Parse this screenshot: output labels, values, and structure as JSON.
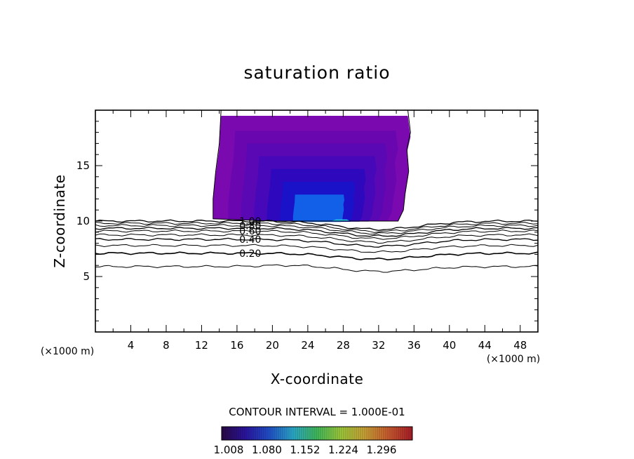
{
  "chart_data": {
    "type": "contour",
    "title": "saturation ratio",
    "xlabel": "X-coordinate",
    "ylabel": "Z-coordinate",
    "x_unit": "(×1000 m)",
    "y_unit": "(×1000 m)",
    "xlim": [
      0,
      50
    ],
    "ylim": [
      0,
      20
    ],
    "x_ticks": [
      4,
      8,
      12,
      16,
      20,
      24,
      28,
      32,
      36,
      40,
      44,
      48
    ],
    "y_ticks": [
      5,
      10,
      15
    ],
    "contour_interval_text": "CONTOUR INTERVAL = 1.000E-01",
    "contour_labels": [
      {
        "text": "1.00",
        "x": 17.5,
        "z": 10.0
      },
      {
        "text": "0.80",
        "x": 17.5,
        "z": 9.6
      },
      {
        "text": "0.60",
        "x": 17.5,
        "z": 9.1
      },
      {
        "text": "0.40",
        "x": 17.5,
        "z": 8.35
      },
      {
        "text": "0.20",
        "x": 17.5,
        "z": 7.1
      }
    ],
    "colorbar": {
      "labels": [
        "1.008",
        "1.080",
        "1.152",
        "1.224",
        "1.296"
      ],
      "colors": [
        "#2a0844",
        "#2a14a0",
        "#2050c8",
        "#2aa8c8",
        "#40b85a",
        "#9cc83a",
        "#c8a036",
        "#c85a2e",
        "#a81c28"
      ]
    },
    "supersaturated_region": {
      "x_range": [
        13.5,
        35
      ],
      "z_range": [
        10,
        20
      ],
      "colors": [
        "#7a0ab0",
        "#6a06b0",
        "#5a08b4",
        "#4608b8",
        "#2e08bc",
        "#1a12c8",
        "#1260e8",
        "#22c8e8"
      ]
    }
  }
}
